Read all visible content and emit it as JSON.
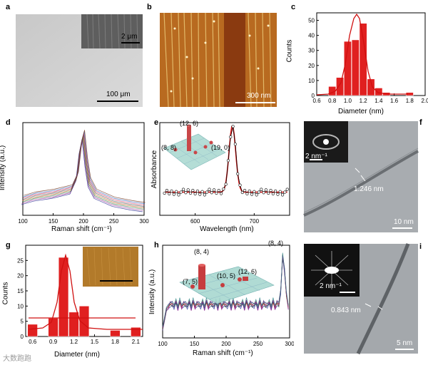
{
  "panels": {
    "a": {
      "letter": "a",
      "inset_scale": "2 μm",
      "scale": "100 μm"
    },
    "b": {
      "letter": "b",
      "scale": "300 nm"
    },
    "c": {
      "letter": "c",
      "xlabel": "Diameter (nm)",
      "ylabel": "Counts",
      "xticks": [
        "0.6",
        "0.8",
        "1.0",
        "1.2",
        "1.4",
        "1.6",
        "1.8",
        "2.0"
      ],
      "yticks": [
        "0",
        "10",
        "20",
        "30",
        "40",
        "50"
      ]
    },
    "d": {
      "letter": "d",
      "xlabel": "Raman shift (cm⁻¹)",
      "ylabel": "Intensity (a.u.)",
      "xticks": [
        "100",
        "150",
        "200",
        "250",
        "300"
      ]
    },
    "e": {
      "letter": "e",
      "xlabel": "Wavelength (nm)",
      "ylabel": "Absorbance",
      "xticks": [
        "600",
        "700"
      ],
      "ann": {
        "a": "(12, 6)",
        "b": "(8, 8)",
        "c": "(19, 0)"
      }
    },
    "f": {
      "letter": "f",
      "inset_scale": "2 nm⁻¹",
      "measure": "1.246 nm",
      "scale": "10 nm"
    },
    "g": {
      "letter": "g",
      "xlabel": "Diameter (nm)",
      "ylabel": "Counts",
      "xticks": [
        "0.6",
        "0.9",
        "1.2",
        "1.5",
        "1.8",
        "2.1"
      ],
      "yticks": [
        "0",
        "5",
        "10",
        "15",
        "20",
        "25"
      ]
    },
    "h": {
      "letter": "h",
      "xlabel": "Raman shift (cm⁻¹)",
      "ylabel": "Intensity (a.u.)",
      "xticks": [
        "100",
        "150",
        "200",
        "250",
        "300"
      ],
      "ann": {
        "a": "(8, 4)",
        "b": "(7, 5)",
        "c": "(10, 5)",
        "d": "(12, 6)",
        "e": "(8, 4)"
      }
    },
    "i": {
      "letter": "i",
      "inset_scale": "2 nm⁻¹",
      "measure": "0.843 nm",
      "scale": "5 nm"
    }
  },
  "watermark": "大数跑跑",
  "colors": {
    "bar": "#e02020",
    "fit": "#d01010",
    "map": "#b8681e"
  },
  "chart_data": [
    {
      "type": "bar",
      "panel": "c",
      "xlabel": "Diameter (nm)",
      "ylabel": "Counts",
      "xlim": [
        0.6,
        2.0
      ],
      "ylim": [
        0,
        55
      ],
      "x": [
        0.8,
        0.9,
        1.0,
        1.1,
        1.2,
        1.3,
        1.4,
        1.5,
        1.7,
        1.8
      ],
      "values": [
        6,
        12,
        36,
        37,
        48,
        11,
        5,
        2,
        0,
        2
      ]
    },
    {
      "type": "bar",
      "panel": "g",
      "xlabel": "Diameter (nm)",
      "ylabel": "Counts",
      "xlim": [
        0.5,
        2.2
      ],
      "ylim": [
        0,
        30
      ],
      "x": [
        0.6,
        0.9,
        1.05,
        1.2,
        1.35,
        1.8,
        2.1
      ],
      "values": [
        4,
        6,
        26,
        8,
        10,
        2,
        3
      ]
    },
    {
      "type": "line",
      "panel": "d",
      "xlabel": "Raman shift (cm⁻¹)",
      "ylabel": "Intensity (a.u.)",
      "xlim": [
        100,
        300
      ],
      "x": [
        100,
        120,
        150,
        180,
        190,
        195,
        200,
        205,
        210,
        220,
        250,
        280,
        300
      ],
      "y": [
        0.18,
        0.22,
        0.25,
        0.3,
        0.45,
        0.75,
        0.92,
        0.6,
        0.38,
        0.25,
        0.16,
        0.12,
        0.1
      ]
    },
    {
      "type": "scatter",
      "panel": "e",
      "xlabel": "Wavelength (nm)",
      "ylabel": "Absorbance",
      "xlim": [
        540,
        760
      ],
      "x": [
        560,
        600,
        640,
        650,
        655,
        660,
        665,
        668,
        672,
        680,
        700,
        740
      ],
      "y": [
        0.25,
        0.24,
        0.26,
        0.4,
        0.6,
        0.85,
        0.95,
        0.9,
        0.5,
        0.25,
        0.24,
        0.25
      ]
    },
    {
      "type": "line",
      "panel": "h",
      "xlabel": "Raman shift (cm⁻¹)",
      "ylabel": "Intensity (a.u.)",
      "xlim": [
        100,
        300
      ],
      "x": [
        100,
        110,
        150,
        200,
        250,
        280,
        290,
        295,
        300
      ],
      "y": [
        0.1,
        0.38,
        0.35,
        0.32,
        0.34,
        0.45,
        0.9,
        0.6,
        0.3
      ]
    }
  ]
}
